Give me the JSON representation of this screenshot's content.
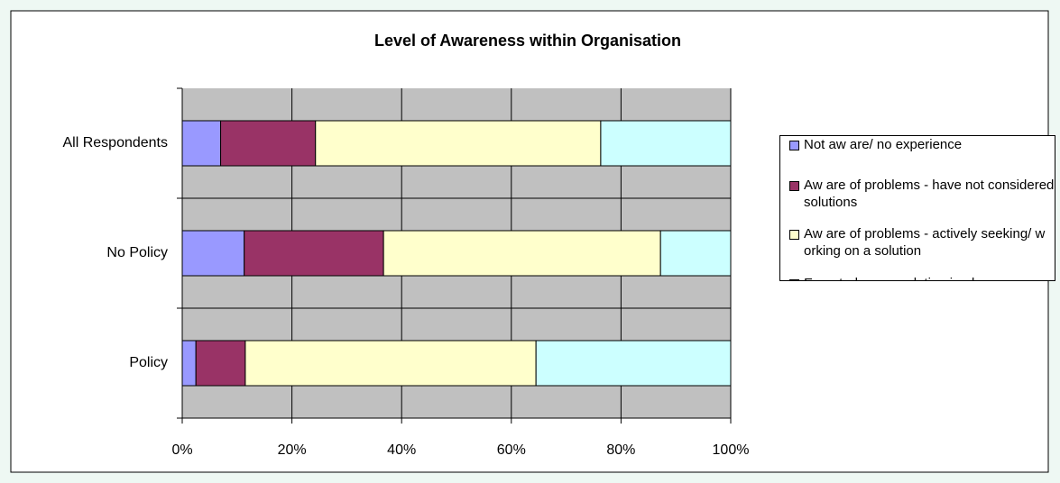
{
  "chart_data": {
    "type": "stacked_bar_horizontal",
    "title": "Level of Awareness within Organisation",
    "categories": [
      "All Respondents",
      "No Policy",
      "Policy"
    ],
    "series": [
      {
        "name": "Not aw are/ no experience",
        "color": "#9999ff",
        "values": [
          7,
          11.3,
          2.5
        ]
      },
      {
        "name": "Aw are of problems - have not considered solutions",
        "color": "#993366",
        "values": [
          17.3,
          25.4,
          9
        ]
      },
      {
        "name": "Aw are of problems - actively seeking/ w orking on a solution",
        "color": "#ffffcc",
        "values": [
          52,
          50.5,
          53
        ]
      },
      {
        "name": "Expert - have a solution in place or planned",
        "color": "#ccffff",
        "values": [
          23.7,
          12.8,
          35.5
        ]
      }
    ],
    "xlim": [
      0,
      100
    ],
    "xticks": [
      {
        "value": 0,
        "label": "0%"
      },
      {
        "value": 20,
        "label": "20%"
      },
      {
        "value": 40,
        "label": "40%"
      },
      {
        "value": 60,
        "label": "60%"
      },
      {
        "value": 80,
        "label": "80%"
      },
      {
        "value": 100,
        "label": "100%"
      }
    ],
    "grid": true,
    "legend": "right"
  }
}
